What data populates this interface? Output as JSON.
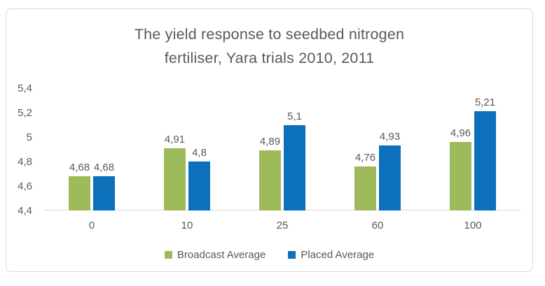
{
  "chart_data": {
    "type": "bar",
    "title": "The yield response to seedbed nitrogen fertiliser, Yara trials 2010, 2011",
    "title_lines": [
      "The yield response to seedbed nitrogen",
      "fertiliser, Yara trials 2010, 2011"
    ],
    "categories": [
      "0",
      "10",
      "25",
      "60",
      "100"
    ],
    "series": [
      {
        "name": "Broadcast Average",
        "color": "#9DBB5B",
        "values": [
          4.68,
          4.91,
          4.89,
          4.76,
          4.96
        ],
        "data_labels": [
          "4,68",
          "4,91",
          "4,89",
          "4,76",
          "4,96"
        ]
      },
      {
        "name": "Placed Average",
        "color": "#0C70BA",
        "values": [
          4.68,
          4.8,
          5.1,
          4.93,
          5.21
        ],
        "data_labels": [
          "4,68",
          "4,8",
          "5,1",
          "4,93",
          "5,21"
        ]
      }
    ],
    "y_axis": {
      "min": 4.4,
      "max": 5.4,
      "step": 0.2,
      "tick_labels": [
        "4,4",
        "4,6",
        "4,8",
        "5",
        "5,2",
        "5,4"
      ]
    },
    "xlabel": "",
    "ylabel": "",
    "grid": false,
    "legend_position": "bottom",
    "text_color": "#595959",
    "axis_line_color": "#D9D9D9"
  }
}
